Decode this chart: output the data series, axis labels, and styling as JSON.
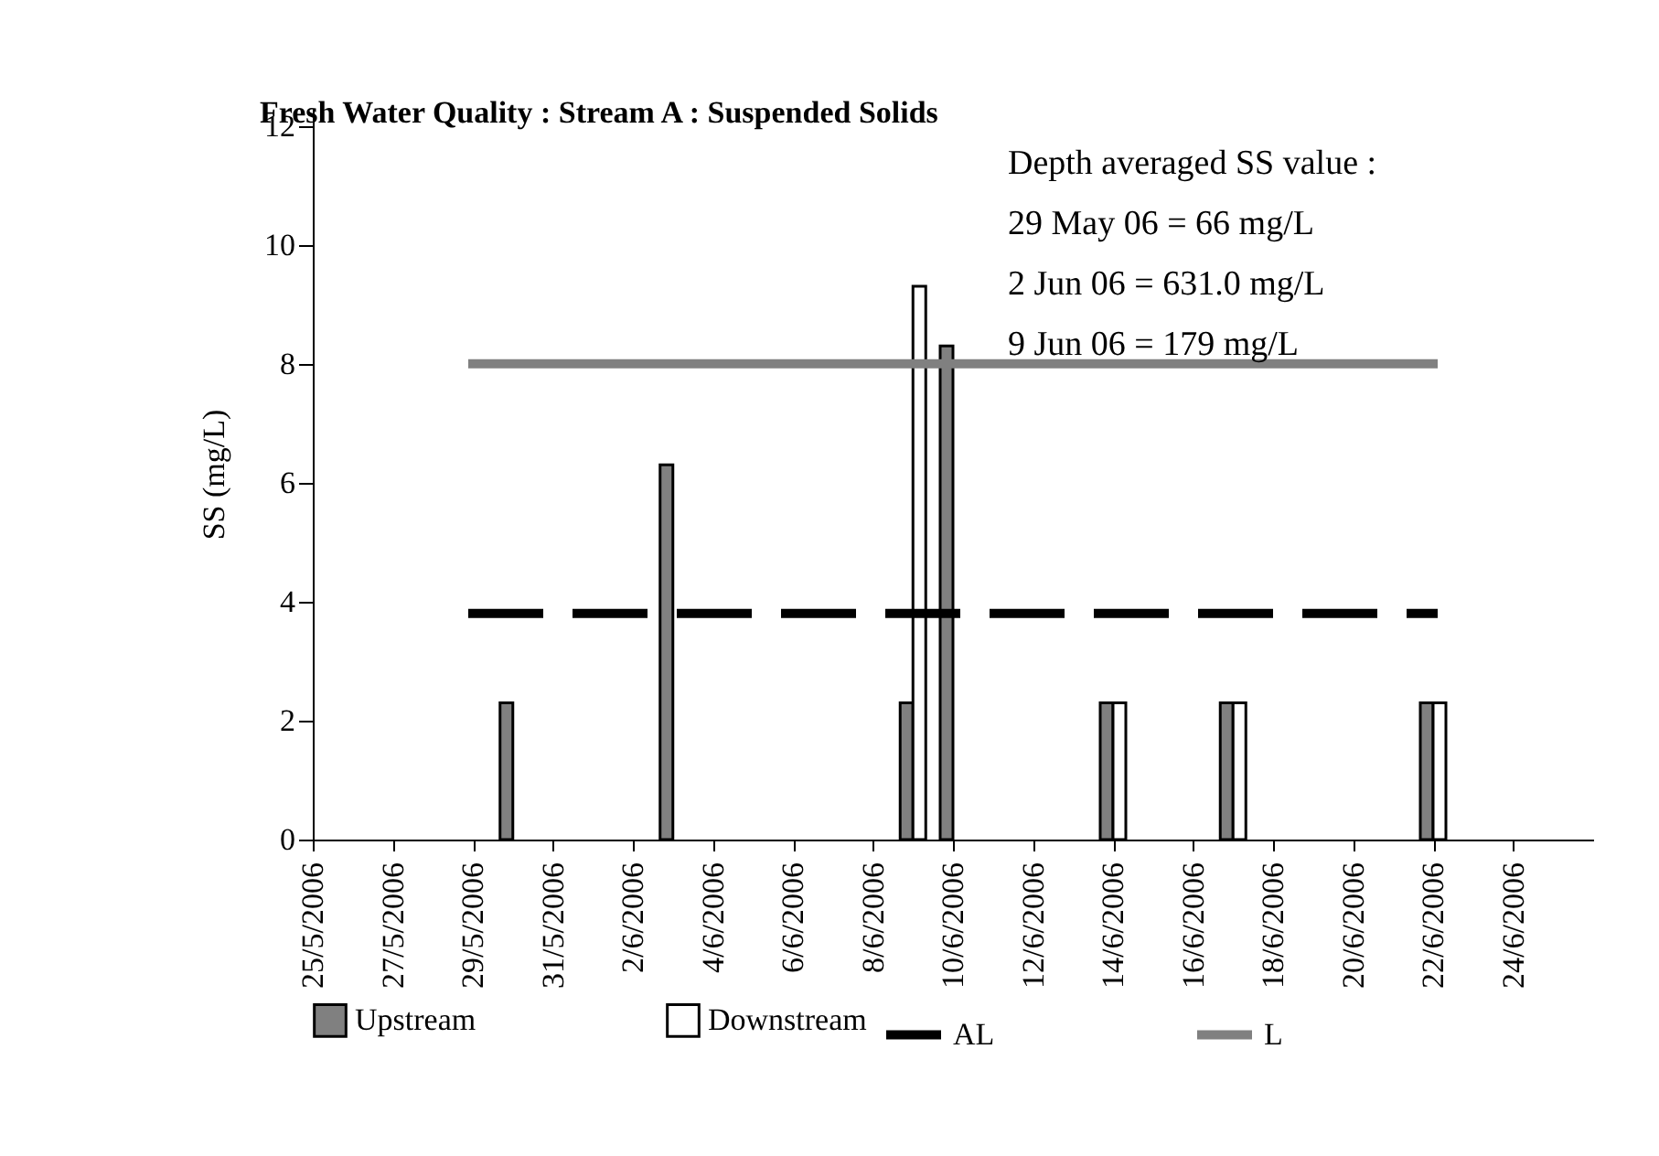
{
  "chart_data": {
    "type": "bar",
    "title": "Fresh Water Quality : Stream A : Suspended Solids",
    "ylabel": "SS (mg/L)",
    "x": [
      "2006-05-30",
      "2006-06-03",
      "2006-06-09",
      "2006-06-10",
      "2006-06-14",
      "2006-06-17",
      "2006-06-22"
    ],
    "series": [
      {
        "name": "Upstream",
        "color": "#808080",
        "values": [
          2.3,
          6.3,
          2.3,
          8.3,
          2.3,
          2.3,
          2.3
        ]
      },
      {
        "name": "Downstream",
        "color": "#ffffff",
        "values": [
          null,
          null,
          9.3,
          null,
          2.3,
          2.3,
          2.3
        ]
      },
      {
        "name": "AL",
        "type": "line",
        "color": "#000000",
        "line_style": "dashed",
        "x": [
          "2006-05-29",
          "2006-06-22"
        ],
        "values": [
          3.8,
          3.8
        ]
      },
      {
        "name": "L",
        "type": "line",
        "color": "#808080",
        "line_style": "solid",
        "x": [
          "2006-05-29",
          "2006-06-22"
        ],
        "values": [
          8,
          8
        ]
      }
    ],
    "annotations": [
      "Depth averaged SS value :",
      "29 May 06 = 66 mg/L",
      "2 Jun 06 = 631.0 mg/L",
      "9 Jun 06 = 179 mg/L"
    ],
    "xlim": [
      "2006-05-25",
      "2006-06-26"
    ],
    "xticks": [
      {
        "value": "2006-05-25",
        "label": "25/5/2006"
      },
      {
        "value": "2006-05-27",
        "label": "27/5/2006"
      },
      {
        "value": "2006-05-29",
        "label": "29/5/2006"
      },
      {
        "value": "2006-05-31",
        "label": "31/5/2006"
      },
      {
        "value": "2006-06-02",
        "label": "2/6/2006"
      },
      {
        "value": "2006-06-04",
        "label": "4/6/2006"
      },
      {
        "value": "2006-06-06",
        "label": "6/6/2006"
      },
      {
        "value": "2006-06-08",
        "label": "8/6/2006"
      },
      {
        "value": "2006-06-10",
        "label": "10/6/2006"
      },
      {
        "value": "2006-06-12",
        "label": "12/6/2006"
      },
      {
        "value": "2006-06-14",
        "label": "14/6/2006"
      },
      {
        "value": "2006-06-16",
        "label": "16/6/2006"
      },
      {
        "value": "2006-06-18",
        "label": "18/6/2006"
      },
      {
        "value": "2006-06-20",
        "label": "20/6/2006"
      },
      {
        "value": "2006-06-22",
        "label": "22/6/2006"
      },
      {
        "value": "2006-06-24",
        "label": "24/6/2006"
      }
    ],
    "ylim": [
      0,
      12.3
    ],
    "yticks": [
      0,
      2,
      4,
      6,
      8,
      10,
      12
    ],
    "grid": false,
    "legend": "bottom"
  }
}
